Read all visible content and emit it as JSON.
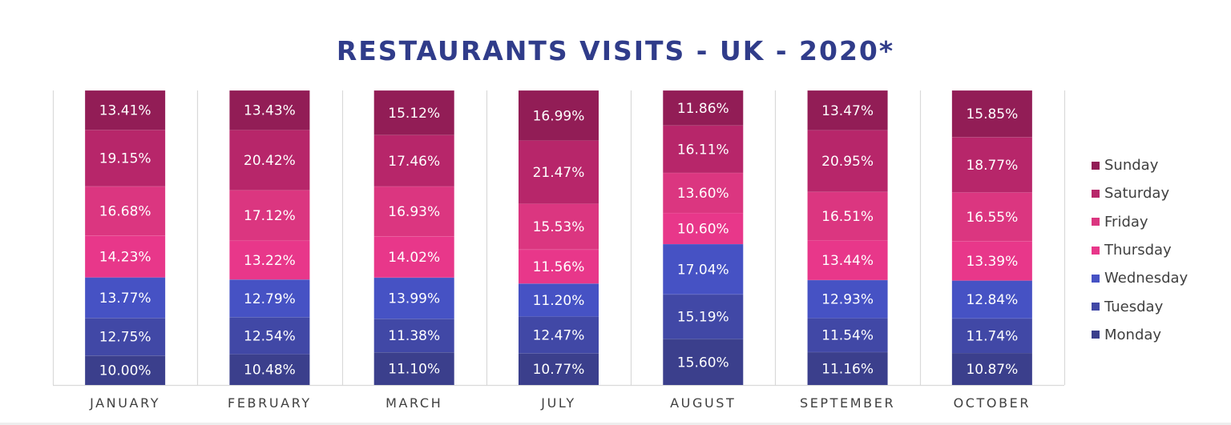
{
  "chart_data": {
    "type": "bar",
    "stacked": true,
    "title": "RESTAURANTS VISITS - UK - 2020*",
    "categories": [
      "JANUARY",
      "FEBRUARY",
      "MARCH",
      "JULY",
      "AUGUST",
      "SEPTEMBER",
      "OCTOBER"
    ],
    "value_format": "percent",
    "series": [
      {
        "name": "Monday",
        "color": "#3b3f8c",
        "values": [
          10.0,
          10.48,
          11.1,
          10.77,
          15.6,
          11.16,
          10.87
        ],
        "labels": [
          "10.00%",
          "10.48%",
          "11.10%",
          "10.77%",
          "15.60%",
          "11.16%",
          "10.87%"
        ]
      },
      {
        "name": "Tuesday",
        "color": "#4148a6",
        "values": [
          12.75,
          12.54,
          11.38,
          12.47,
          15.19,
          11.54,
          11.74
        ],
        "labels": [
          "12.75%",
          "12.54%",
          "11.38%",
          "12.47%",
          "15.19%",
          "11.54%",
          "11.74%"
        ]
      },
      {
        "name": "Wednesday",
        "color": "#4652c4",
        "values": [
          13.77,
          12.79,
          13.99,
          11.2,
          17.04,
          12.93,
          12.84
        ],
        "labels": [
          "13.77%",
          "12.79%",
          "13.99%",
          "11.20%",
          "17.04%",
          "12.93%",
          "12.84%"
        ]
      },
      {
        "name": "Thursday",
        "color": "#e8378a",
        "values": [
          14.23,
          13.22,
          14.02,
          11.56,
          10.6,
          13.44,
          13.39
        ],
        "labels": [
          "14.23%",
          "13.22%",
          "14.02%",
          "11.56%",
          "10.60%",
          "13.44%",
          "13.39%"
        ]
      },
      {
        "name": "Friday",
        "color": "#db3680",
        "values": [
          16.68,
          17.12,
          16.93,
          15.53,
          13.6,
          16.51,
          16.55
        ],
        "labels": [
          "16.68%",
          "17.12%",
          "16.93%",
          "15.53%",
          "13.60%",
          "16.51%",
          "16.55%"
        ]
      },
      {
        "name": "Saturday",
        "color": "#b7266a",
        "values": [
          19.15,
          20.42,
          17.46,
          21.47,
          16.11,
          20.95,
          18.77
        ],
        "labels": [
          "19.15%",
          "20.42%",
          "17.46%",
          "21.47%",
          "16.11%",
          "20.95%",
          "18.77%"
        ]
      },
      {
        "name": "Sunday",
        "color": "#921d56",
        "values": [
          13.41,
          13.43,
          15.12,
          16.99,
          11.86,
          13.47,
          15.85
        ],
        "labels": [
          "13.41%",
          "13.43%",
          "15.12%",
          "16.99%",
          "11.86%",
          "13.47%",
          "15.85%"
        ]
      }
    ],
    "legend": [
      "Sunday",
      "Saturday",
      "Friday",
      "Thursday",
      "Wednesday",
      "Tuesday",
      "Monday"
    ],
    "legend_position": "right",
    "grid": false
  }
}
